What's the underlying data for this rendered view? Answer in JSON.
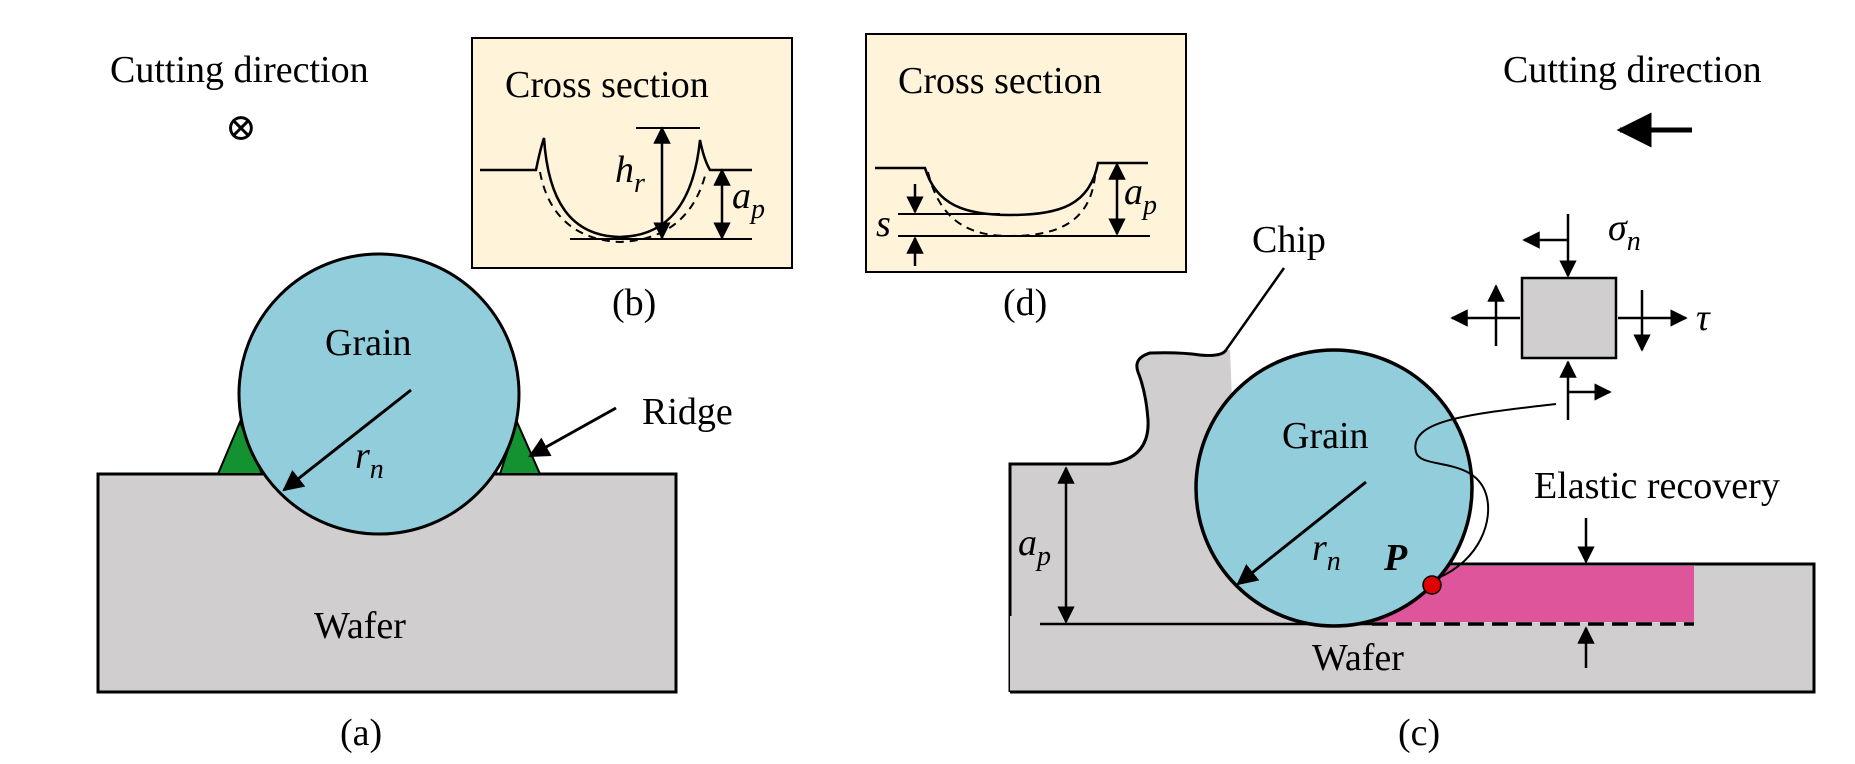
{
  "colors": {
    "grain": "#92CDDC",
    "wafer": "#D0CECE",
    "ridge": "#149130",
    "elastic": "#DE559B",
    "panel_bg": "#FFF3DA",
    "stress_box": "#D0CECE",
    "point_p": "#E00000"
  },
  "panel_a": {
    "cutting_direction": "Cutting direction",
    "direction_symbol": "⊗",
    "grain_label": "Grain",
    "radius_label": "r",
    "radius_sub": "n",
    "ridge_label": "Ridge",
    "wafer_label": "Wafer",
    "caption": "(a)"
  },
  "panel_b": {
    "title": "Cross section",
    "h_label": "h",
    "h_sub": "r",
    "a_label": "a",
    "a_sub": "p",
    "caption": "(b)"
  },
  "panel_d": {
    "title": "Cross section",
    "s_label": "s",
    "a_label": "a",
    "a_sub": "p",
    "caption": "(d)"
  },
  "panel_c": {
    "cutting_direction": "Cutting direction",
    "chip_label": "Chip",
    "sigma_label": "σ",
    "sigma_sub": "n",
    "tau_label": "τ",
    "grain_label": "Grain",
    "radius_label": "r",
    "radius_sub": "n",
    "point_label": "P",
    "elastic_label": "Elastic recovery",
    "a_label": "a",
    "a_sub": "p",
    "wafer_label": "Wafer",
    "caption": "(c)"
  }
}
